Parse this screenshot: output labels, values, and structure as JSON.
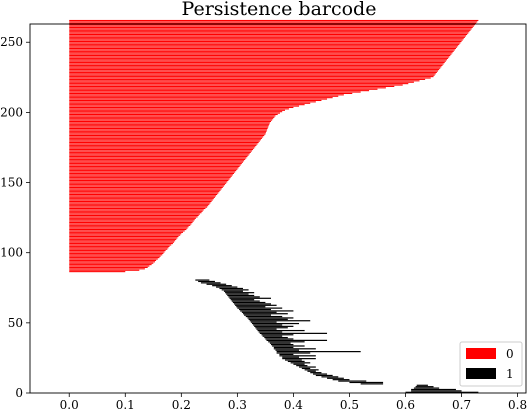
{
  "chart_data": {
    "type": "barcode",
    "title": "Persistence barcode",
    "xlabel": "",
    "ylabel": "",
    "xlim": [
      -0.07,
      0.815
    ],
    "ylim": [
      0,
      263
    ],
    "x_ticks": [
      "0.0",
      "0.1",
      "0.2",
      "0.3",
      "0.4",
      "0.5",
      "0.6",
      "0.7",
      "0.8"
    ],
    "y_ticks": [
      "0",
      "50",
      "100",
      "150",
      "200",
      "250"
    ],
    "legend": {
      "placement": "lower-right",
      "entries": [
        "0",
        "1"
      ]
    },
    "series": [
      {
        "name": "0",
        "color": "#ff0000",
        "index_start": 86,
        "births": 0.0,
        "deaths": [
          0.1,
          0.125,
          0.135,
          0.14,
          0.143,
          0.147,
          0.15,
          0.153,
          0.155,
          0.158,
          0.161,
          0.163,
          0.166,
          0.168,
          0.17,
          0.172,
          0.175,
          0.177,
          0.179,
          0.182,
          0.185,
          0.187,
          0.189,
          0.191,
          0.193,
          0.195,
          0.198,
          0.2,
          0.203,
          0.206,
          0.209,
          0.211,
          0.213,
          0.216,
          0.218,
          0.22,
          0.222,
          0.224,
          0.226,
          0.229,
          0.231,
          0.233,
          0.236,
          0.238,
          0.24,
          0.243,
          0.246,
          0.248,
          0.25,
          0.252,
          0.254,
          0.256,
          0.258,
          0.26,
          0.262,
          0.264,
          0.266,
          0.268,
          0.27,
          0.272,
          0.274,
          0.276,
          0.278,
          0.28,
          0.282,
          0.284,
          0.286,
          0.288,
          0.29,
          0.292,
          0.294,
          0.296,
          0.298,
          0.3,
          0.302,
          0.304,
          0.306,
          0.308,
          0.31,
          0.312,
          0.314,
          0.316,
          0.318,
          0.32,
          0.322,
          0.324,
          0.326,
          0.328,
          0.33,
          0.332,
          0.334,
          0.336,
          0.338,
          0.34,
          0.342,
          0.344,
          0.346,
          0.348,
          0.35,
          0.351,
          0.352,
          0.353,
          0.354,
          0.355,
          0.356,
          0.357,
          0.358,
          0.36,
          0.362,
          0.364,
          0.366,
          0.368,
          0.372,
          0.376,
          0.38,
          0.385,
          0.392,
          0.4,
          0.41,
          0.42,
          0.43,
          0.44,
          0.45,
          0.46,
          0.47,
          0.48,
          0.49,
          0.505,
          0.52,
          0.535,
          0.55,
          0.565,
          0.58,
          0.595,
          0.605,
          0.615,
          0.625,
          0.635,
          0.645,
          0.65,
          0.652,
          0.654,
          0.656,
          0.658,
          0.66,
          0.662,
          0.664,
          0.666,
          0.668,
          0.67,
          0.672,
          0.674,
          0.676,
          0.678,
          0.68,
          0.682,
          0.684,
          0.686,
          0.688,
          0.69,
          0.692,
          0.694,
          0.696,
          0.698,
          0.7,
          0.702,
          0.704,
          0.706,
          0.708,
          0.71,
          0.712,
          0.714,
          0.716,
          0.718,
          0.72,
          0.722,
          0.724,
          0.726,
          0.728,
          0.73
        ]
      },
      {
        "name": "1",
        "color": "#000000",
        "bars": [
          [
            0.6,
            0.73
          ],
          [
            0.61,
            0.7
          ],
          [
            0.61,
            0.69
          ],
          [
            0.615,
            0.66
          ],
          [
            0.618,
            0.65
          ],
          [
            0.62,
            0.64
          ],
          [
            0.52,
            0.56
          ],
          [
            0.5,
            0.56
          ],
          [
            0.48,
            0.53
          ],
          [
            0.47,
            0.5
          ],
          [
            0.46,
            0.49
          ],
          [
            0.45,
            0.48
          ],
          [
            0.44,
            0.47
          ],
          [
            0.435,
            0.46
          ],
          [
            0.43,
            0.45
          ],
          [
            0.425,
            0.44
          ],
          [
            0.42,
            0.445
          ],
          [
            0.415,
            0.43
          ],
          [
            0.41,
            0.44
          ],
          [
            0.405,
            0.425
          ],
          [
            0.4,
            0.42
          ],
          [
            0.395,
            0.43
          ],
          [
            0.39,
            0.42
          ],
          [
            0.385,
            0.415
          ],
          [
            0.38,
            0.44
          ],
          [
            0.38,
            0.41
          ],
          [
            0.375,
            0.44
          ],
          [
            0.375,
            0.4
          ],
          [
            0.37,
            0.43
          ],
          [
            0.37,
            0.52
          ],
          [
            0.368,
            0.41
          ],
          [
            0.365,
            0.44
          ],
          [
            0.365,
            0.4
          ],
          [
            0.362,
            0.42
          ],
          [
            0.36,
            0.4
          ],
          [
            0.358,
            0.395
          ],
          [
            0.355,
            0.42
          ],
          [
            0.352,
            0.46
          ],
          [
            0.35,
            0.4
          ],
          [
            0.348,
            0.39
          ],
          [
            0.345,
            0.38
          ],
          [
            0.343,
            0.4
          ],
          [
            0.34,
            0.46
          ],
          [
            0.338,
            0.38
          ],
          [
            0.336,
            0.42
          ],
          [
            0.334,
            0.37
          ],
          [
            0.332,
            0.39
          ],
          [
            0.33,
            0.4
          ],
          [
            0.328,
            0.38
          ],
          [
            0.326,
            0.41
          ],
          [
            0.324,
            0.37
          ],
          [
            0.322,
            0.43
          ],
          [
            0.32,
            0.39
          ],
          [
            0.318,
            0.4
          ],
          [
            0.315,
            0.38
          ],
          [
            0.312,
            0.36
          ],
          [
            0.31,
            0.39
          ],
          [
            0.308,
            0.37
          ],
          [
            0.305,
            0.4
          ],
          [
            0.303,
            0.36
          ],
          [
            0.3,
            0.38
          ],
          [
            0.298,
            0.35
          ],
          [
            0.296,
            0.37
          ],
          [
            0.294,
            0.36
          ],
          [
            0.292,
            0.35
          ],
          [
            0.29,
            0.34
          ],
          [
            0.288,
            0.33
          ],
          [
            0.286,
            0.36
          ],
          [
            0.284,
            0.34
          ],
          [
            0.282,
            0.33
          ],
          [
            0.28,
            0.32
          ],
          [
            0.278,
            0.33
          ],
          [
            0.276,
            0.31
          ],
          [
            0.272,
            0.32
          ],
          [
            0.268,
            0.31
          ],
          [
            0.262,
            0.3
          ],
          [
            0.255,
            0.29
          ],
          [
            0.245,
            0.28
          ],
          [
            0.235,
            0.27
          ],
          [
            0.23,
            0.26
          ],
          [
            0.225,
            0.25
          ]
        ]
      }
    ]
  }
}
